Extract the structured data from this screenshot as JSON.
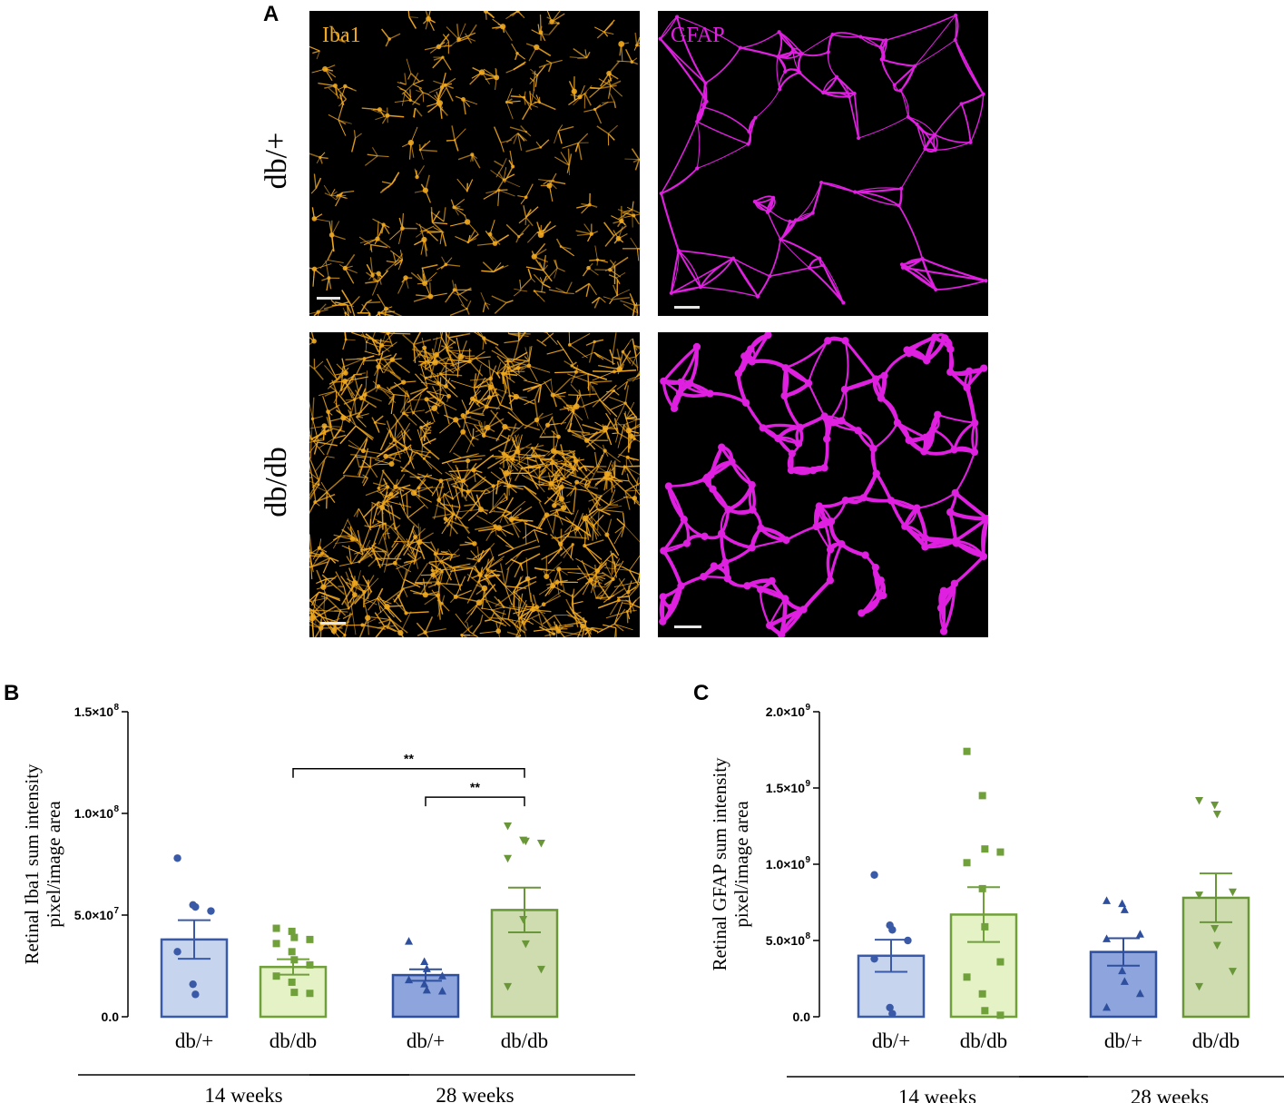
{
  "panels": {
    "A": {
      "letter": "A",
      "row_labels": [
        "db/+",
        "db/db"
      ],
      "stain_labels": [
        "Iba1",
        "GFAP"
      ],
      "colors": {
        "iba1": "#f0a820",
        "gfap": "#e020e0"
      }
    },
    "B": {
      "letter": "B"
    },
    "C": {
      "letter": "C"
    }
  },
  "chart_data": [
    {
      "type": "bar",
      "panel": "B",
      "categories": [
        "db/+",
        "db/db",
        "db/+",
        "db/db"
      ],
      "groups": [
        {
          "label": "14 weeks",
          "categories": [
            0,
            1
          ]
        },
        {
          "label": "28 weeks",
          "categories": [
            2,
            3
          ]
        }
      ],
      "ylabel": "Retinal Iba1 sum intensity pixel/image area",
      "ylabel_lines": [
        "Retinal Iba1 sum intensity",
        "pixel/image area"
      ],
      "ylim": [
        0,
        150000000
      ],
      "yticks": [
        0,
        50000000,
        100000000,
        150000000
      ],
      "ytick_labels": [
        "0.0",
        "5.0×10",
        "1.0×10",
        "1.5×10"
      ],
      "ytick_exponents": [
        "",
        "7",
        "8",
        "8"
      ],
      "means": [
        38000000,
        24500000,
        20500000,
        52500000
      ],
      "sem": [
        9500000,
        3800000,
        2800000,
        11000000
      ],
      "points": [
        [
          78000000,
          55000000,
          54000000,
          52000000,
          32000000,
          16000000,
          11000000
        ],
        [
          43500000,
          42000000,
          39000000,
          38000000,
          36000000,
          32000000,
          28000000,
          25500000,
          20000000,
          17000000,
          12000000,
          11500000
        ],
        [
          37000000,
          27000000,
          23500000,
          20000000,
          18000000,
          16000000,
          13000000,
          12500000
        ],
        [
          94000000,
          87000000,
          86500000,
          85500000,
          78000000,
          48000000,
          36000000,
          23500000,
          15000000
        ]
      ],
      "markers": [
        "circle",
        "square",
        "triangle-up",
        "triangle-down"
      ],
      "colors": {
        "fills": [
          "#c6d4ee",
          "#e5f2c6",
          "#8da4dc",
          "#cfdcb0"
        ],
        "edges": [
          "#3a5aa8",
          "#6fa03a",
          "#2e4e9e",
          "#6a963a"
        ]
      },
      "significance": [
        {
          "from": 1,
          "to": 3,
          "label": "**",
          "y": 122000000
        },
        {
          "from": 2,
          "to": 3,
          "label": "**",
          "y": 108000000
        }
      ]
    },
    {
      "type": "bar",
      "panel": "C",
      "categories": [
        "db/+",
        "db/db",
        "db/+",
        "db/db"
      ],
      "groups": [
        {
          "label": "14 weeks",
          "categories": [
            0,
            1
          ]
        },
        {
          "label": "28 weeks",
          "categories": [
            2,
            3
          ]
        }
      ],
      "ylabel": "Retinal GFAP sum intensity pixel/image area",
      "ylabel_lines": [
        "Retinal GFAP sum intensity",
        "pixel/image area"
      ],
      "ylim": [
        0,
        2000000000
      ],
      "yticks": [
        0,
        500000000,
        1000000000,
        1500000000,
        2000000000
      ],
      "ytick_labels": [
        "0.0",
        "5.0×10",
        "1.0×10",
        "1.5×10",
        "2.0×10"
      ],
      "ytick_exponents": [
        "",
        "8",
        "9",
        "9",
        "9"
      ],
      "means": [
        400000000,
        670000000,
        425000000,
        780000000
      ],
      "sem": [
        105000000,
        180000000,
        90000000,
        160000000
      ],
      "points": [
        [
          930000000,
          600000000,
          570000000,
          500000000,
          380000000,
          60000000,
          20000000
        ],
        [
          1740000000,
          1450000000,
          1100000000,
          1080000000,
          1010000000,
          840000000,
          590000000,
          360000000,
          260000000,
          150000000,
          40000000,
          10000000
        ],
        [
          760000000,
          740000000,
          700000000,
          540000000,
          510000000,
          300000000,
          230000000,
          150000000,
          60000000
        ],
        [
          1420000000,
          1390000000,
          1330000000,
          820000000,
          800000000,
          580000000,
          470000000,
          300000000,
          200000000
        ]
      ],
      "markers": [
        "circle",
        "square",
        "triangle-up",
        "triangle-down"
      ],
      "colors": {
        "fills": [
          "#c6d4ee",
          "#e5f2c6",
          "#8da4dc",
          "#cfdcb0"
        ],
        "edges": [
          "#3a5aa8",
          "#6fa03a",
          "#2e4e9e",
          "#6a963a"
        ]
      },
      "significance": []
    }
  ]
}
